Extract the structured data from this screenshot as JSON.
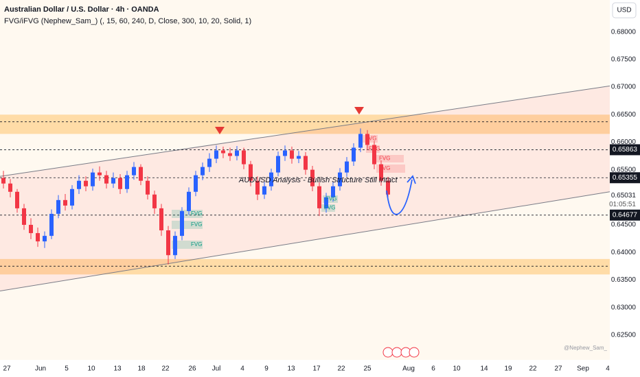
{
  "chart_data": {
    "type": "candlestick",
    "title": "Australian Dollar / U.S. Dollar · 4h · OANDA",
    "subtitle": "FVG/iFVG (Nephew_Sam_) (, 15, 60, 240, D, Close, 300, 10, 20, Solid, 1)",
    "annotation": "AUDUSD Analysis - Bullish Structure Still Intact",
    "currency": "USD",
    "watermark": "@Nephew_Sam_",
    "x": [
      1,
      3,
      5,
      7,
      9,
      11,
      13,
      15,
      17,
      19,
      21,
      23,
      25,
      27,
      29,
      31,
      33,
      35,
      37,
      39,
      41,
      43,
      45,
      47,
      49,
      51,
      53,
      55,
      57,
      59,
      61,
      63,
      65,
      67,
      69,
      71,
      73,
      75,
      77,
      79,
      81,
      83,
      85,
      87,
      89,
      91,
      93,
      95,
      97,
      99,
      101,
      103,
      105,
      107,
      109,
      111,
      113
    ],
    "open": [
      0.6535,
      0.6525,
      0.651,
      0.648,
      0.645,
      0.6435,
      0.642,
      0.643,
      0.647,
      0.6495,
      0.6485,
      0.6515,
      0.653,
      0.652,
      0.6545,
      0.654,
      0.6525,
      0.6535,
      0.6515,
      0.654,
      0.6555,
      0.653,
      0.6505,
      0.648,
      0.644,
      0.6395,
      0.643,
      0.6475,
      0.651,
      0.654,
      0.6555,
      0.657,
      0.6585,
      0.658,
      0.6575,
      0.6585,
      0.656,
      0.653,
      0.6505,
      0.652,
      0.6545,
      0.6575,
      0.6585,
      0.657,
      0.6575,
      0.655,
      0.652,
      0.648,
      0.65,
      0.652,
      0.6545,
      0.6565,
      0.659,
      0.6615,
      0.6595,
      0.656,
      0.653
    ],
    "high": [
      0.6548,
      0.6533,
      0.6515,
      0.6488,
      0.6462,
      0.6445,
      0.6438,
      0.6478,
      0.6504,
      0.6506,
      0.6522,
      0.654,
      0.6538,
      0.6552,
      0.6556,
      0.6548,
      0.6545,
      0.6542,
      0.6548,
      0.6564,
      0.656,
      0.6538,
      0.6512,
      0.6488,
      0.6448,
      0.6438,
      0.6482,
      0.6518,
      0.6548,
      0.6563,
      0.658,
      0.6594,
      0.6592,
      0.659,
      0.6593,
      0.659,
      0.6566,
      0.6538,
      0.6528,
      0.6552,
      0.6583,
      0.6594,
      0.6592,
      0.6584,
      0.6582,
      0.6557,
      0.6527,
      0.6508,
      0.6528,
      0.6553,
      0.6573,
      0.6598,
      0.6625,
      0.6622,
      0.6602,
      0.6567,
      0.6537
    ],
    "low": [
      0.6516,
      0.65,
      0.6472,
      0.6441,
      0.6424,
      0.641,
      0.6408,
      0.6424,
      0.6462,
      0.6476,
      0.6478,
      0.6506,
      0.6511,
      0.6512,
      0.653,
      0.6516,
      0.6517,
      0.6506,
      0.6508,
      0.6532,
      0.6522,
      0.6496,
      0.647,
      0.643,
      0.6378,
      0.6388,
      0.6422,
      0.6468,
      0.6502,
      0.6531,
      0.6546,
      0.6562,
      0.6571,
      0.6566,
      0.6567,
      0.6551,
      0.652,
      0.6495,
      0.6497,
      0.6512,
      0.6538,
      0.6566,
      0.6561,
      0.6562,
      0.6541,
      0.6511,
      0.6466,
      0.6472,
      0.6492,
      0.6512,
      0.6537,
      0.6557,
      0.6582,
      0.6586,
      0.6551,
      0.6521,
      0.6496
    ],
    "close": [
      0.6525,
      0.651,
      0.648,
      0.645,
      0.6435,
      0.642,
      0.643,
      0.647,
      0.6495,
      0.6485,
      0.6515,
      0.653,
      0.652,
      0.6545,
      0.654,
      0.6525,
      0.6535,
      0.6515,
      0.654,
      0.6555,
      0.653,
      0.6505,
      0.648,
      0.644,
      0.6395,
      0.643,
      0.6475,
      0.651,
      0.654,
      0.6555,
      0.657,
      0.6585,
      0.658,
      0.6575,
      0.6585,
      0.656,
      0.653,
      0.6505,
      0.652,
      0.6545,
      0.6575,
      0.6585,
      0.657,
      0.6575,
      0.655,
      0.652,
      0.648,
      0.65,
      0.652,
      0.6545,
      0.6565,
      0.659,
      0.6615,
      0.6595,
      0.656,
      0.653,
      0.6505
    ],
    "up_color": "#2962ff",
    "down_color": "#f23645",
    "xlim": [
      0,
      177.6
    ],
    "ylim": [
      0.6205,
      0.6858
    ],
    "yticks": [
      {
        "value": 0.68,
        "label": "0.68000"
      },
      {
        "value": 0.675,
        "label": "0.67500"
      },
      {
        "value": 0.67,
        "label": "0.67000"
      },
      {
        "value": 0.665,
        "label": "0.66500"
      },
      {
        "value": 0.66,
        "label": "0.66000"
      },
      {
        "value": 0.655,
        "label": "0.65500"
      },
      {
        "value": 0.645,
        "label": "0.64500"
      },
      {
        "value": 0.64,
        "label": "0.64000"
      },
      {
        "value": 0.635,
        "label": "0.63500"
      },
      {
        "value": 0.63,
        "label": "0.63000"
      },
      {
        "value": 0.625,
        "label": "0.62500"
      }
    ],
    "xticks": [
      {
        "value": 2,
        "label": "27"
      },
      {
        "value": 11.8,
        "label": "Jun"
      },
      {
        "value": 19.4,
        "label": "5"
      },
      {
        "value": 26.6,
        "label": "10"
      },
      {
        "value": 34.2,
        "label": "13"
      },
      {
        "value": 41.2,
        "label": "18"
      },
      {
        "value": 48.2,
        "label": "22"
      },
      {
        "value": 56,
        "label": "26"
      },
      {
        "value": 63,
        "label": "Jul"
      },
      {
        "value": 70.6,
        "label": "4"
      },
      {
        "value": 77.6,
        "label": "9"
      },
      {
        "value": 84.8,
        "label": "13"
      },
      {
        "value": 92.2,
        "label": "17"
      },
      {
        "value": 99.4,
        "label": "22"
      },
      {
        "value": 107,
        "label": "25"
      },
      {
        "value": 119,
        "label": "Aug"
      },
      {
        "value": 126.2,
        "label": "6"
      },
      {
        "value": 133,
        "label": "10"
      },
      {
        "value": 141,
        "label": "14"
      },
      {
        "value": 148,
        "label": "19"
      },
      {
        "value": 155.2,
        "label": "22"
      },
      {
        "value": 162.6,
        "label": "27"
      },
      {
        "value": 169.8,
        "label": "Sep"
      },
      {
        "value": 177,
        "label": "4"
      }
    ],
    "levels": [
      0.6637,
      0.65863,
      0.65355,
      0.64677,
      0.6375
    ],
    "zones": [
      [
        0.6615,
        0.665
      ],
      [
        0.636,
        0.6388
      ]
    ],
    "channel": {
      "upper": [
        0.6538,
        0.6702
      ],
      "lower": [
        0.633,
        0.651
      ]
    },
    "price_labels": [
      {
        "value": 0.65863,
        "label": "0.65863"
      },
      {
        "value": 0.65355,
        "label": "0.65355"
      },
      {
        "value": 0.64677,
        "label": "0.64677"
      }
    ],
    "last_price": {
      "value": 0.65031,
      "label": "0.65031",
      "countdown": "01:05:51"
    },
    "fvg_labels": [
      "FVG",
      "FVG",
      "FVG",
      "FVG",
      "FVG",
      "FVG",
      "FVG",
      "FVG",
      "FVG"
    ]
  }
}
